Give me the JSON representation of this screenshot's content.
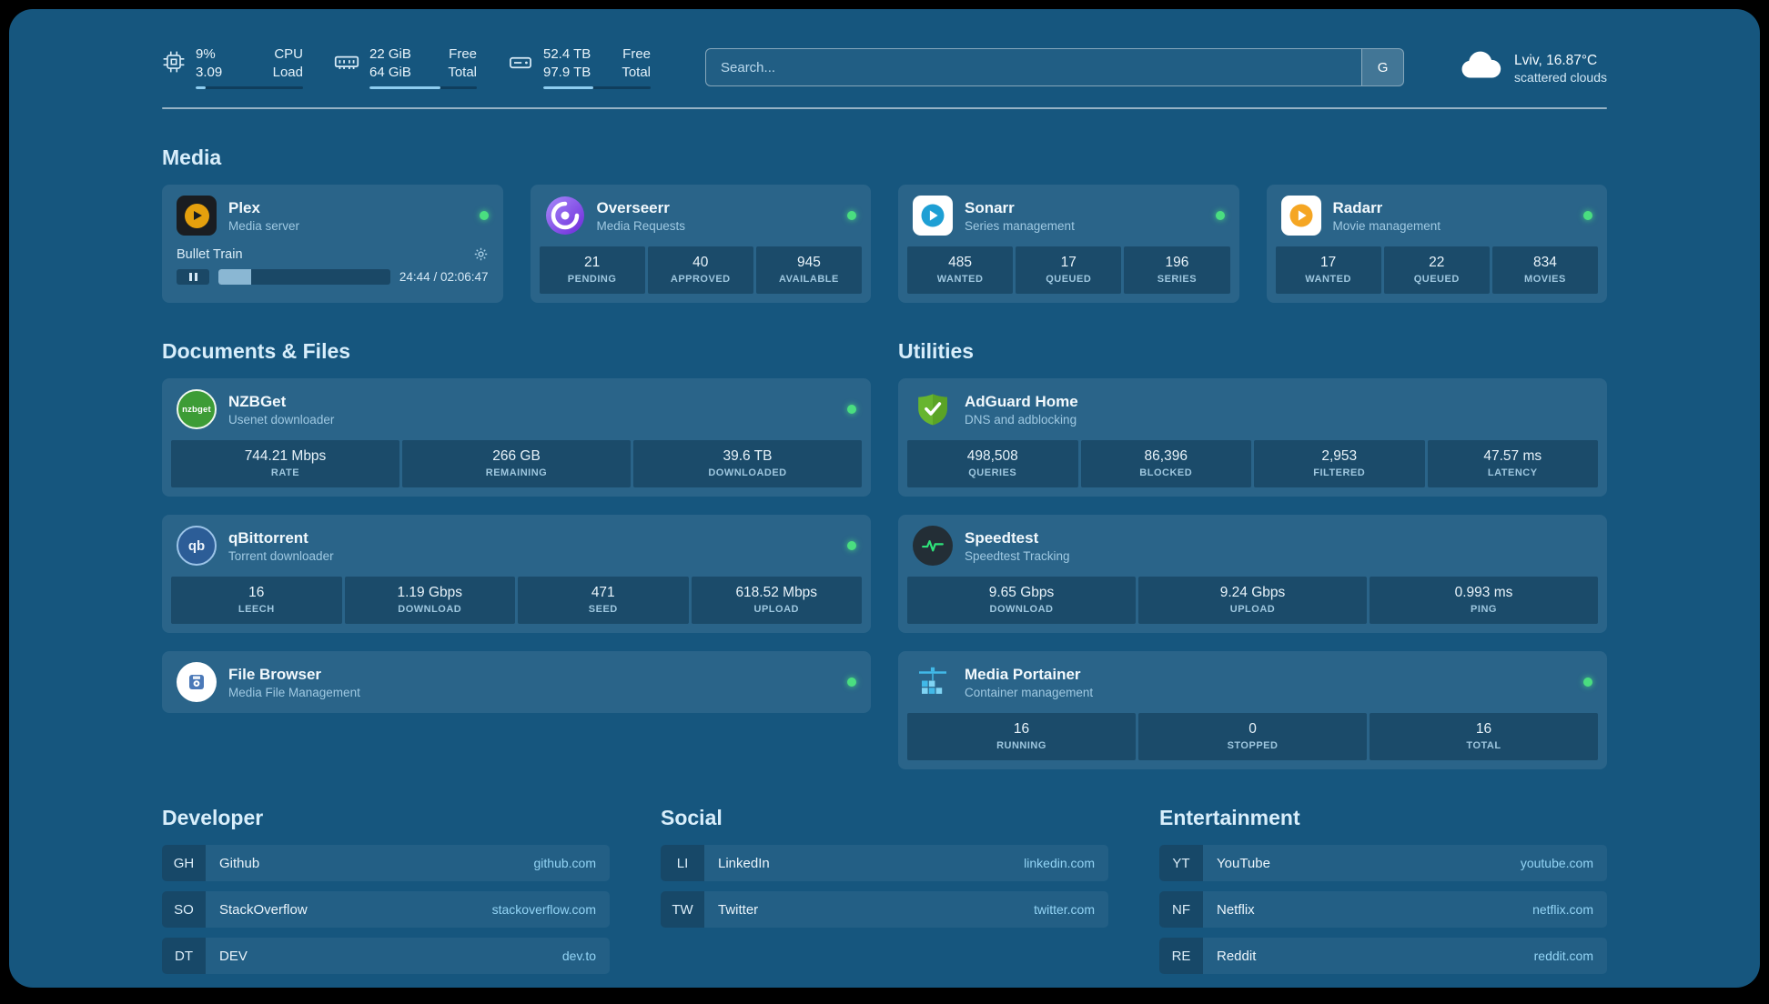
{
  "topbar": {
    "cpu": {
      "value1": "9%",
      "label1": "CPU",
      "value2": "3.09",
      "label2": "Load",
      "progress": 9
    },
    "memory": {
      "value1": "22 GiB",
      "label1": "Free",
      "value2": "64 GiB",
      "label2": "Total",
      "progress": 66
    },
    "disk": {
      "value1": "52.4 TB",
      "label1": "Free",
      "value2": "97.9 TB",
      "label2": "Total",
      "progress": 47
    },
    "search": {
      "placeholder": "Search...",
      "provider": "G"
    },
    "weather": {
      "location": "Lviv, 16.87°C",
      "condition": "scattered clouds"
    }
  },
  "sections": {
    "media": {
      "title": "Media"
    },
    "documents": {
      "title": "Documents & Files"
    },
    "utilities": {
      "title": "Utilities"
    },
    "developer": {
      "title": "Developer"
    },
    "social": {
      "title": "Social"
    },
    "entertainment": {
      "title": "Entertainment"
    }
  },
  "services": {
    "plex": {
      "name": "Plex",
      "subtitle": "Media server",
      "now_playing": "Bullet Train",
      "time": "24:44 / 02:06:47",
      "progress": 19
    },
    "overseerr": {
      "name": "Overseerr",
      "subtitle": "Media Requests",
      "stats": [
        {
          "value": "21",
          "label": "PENDING"
        },
        {
          "value": "40",
          "label": "APPROVED"
        },
        {
          "value": "945",
          "label": "AVAILABLE"
        }
      ]
    },
    "sonarr": {
      "name": "Sonarr",
      "subtitle": "Series management",
      "stats": [
        {
          "value": "485",
          "label": "WANTED"
        },
        {
          "value": "17",
          "label": "QUEUED"
        },
        {
          "value": "196",
          "label": "SERIES"
        }
      ]
    },
    "radarr": {
      "name": "Radarr",
      "subtitle": "Movie management",
      "stats": [
        {
          "value": "17",
          "label": "WANTED"
        },
        {
          "value": "22",
          "label": "QUEUED"
        },
        {
          "value": "834",
          "label": "MOVIES"
        }
      ]
    },
    "nzbget": {
      "name": "NZBGet",
      "subtitle": "Usenet downloader",
      "stats": [
        {
          "value": "744.21 Mbps",
          "label": "RATE"
        },
        {
          "value": "266 GB",
          "label": "REMAINING"
        },
        {
          "value": "39.6 TB",
          "label": "DOWNLOADED"
        }
      ]
    },
    "qbittorrent": {
      "name": "qBittorrent",
      "subtitle": "Torrent downloader",
      "stats": [
        {
          "value": "16",
          "label": "LEECH"
        },
        {
          "value": "1.19 Gbps",
          "label": "DOWNLOAD"
        },
        {
          "value": "471",
          "label": "SEED"
        },
        {
          "value": "618.52 Mbps",
          "label": "UPLOAD"
        }
      ]
    },
    "filebrowser": {
      "name": "File Browser",
      "subtitle": "Media File Management"
    },
    "adguard": {
      "name": "AdGuard Home",
      "subtitle": "DNS and adblocking",
      "stats": [
        {
          "value": "498,508",
          "label": "QUERIES"
        },
        {
          "value": "86,396",
          "label": "BLOCKED"
        },
        {
          "value": "2,953",
          "label": "FILTERED"
        },
        {
          "value": "47.57 ms",
          "label": "LATENCY"
        }
      ]
    },
    "speedtest": {
      "name": "Speedtest",
      "subtitle": "Speedtest Tracking",
      "stats": [
        {
          "value": "9.65 Gbps",
          "label": "DOWNLOAD"
        },
        {
          "value": "9.24 Gbps",
          "label": "UPLOAD"
        },
        {
          "value": "0.993 ms",
          "label": "PING"
        }
      ]
    },
    "portainer": {
      "name": "Media Portainer",
      "subtitle": "Container management",
      "stats": [
        {
          "value": "16",
          "label": "RUNNING"
        },
        {
          "value": "0",
          "label": "STOPPED"
        },
        {
          "value": "16",
          "label": "TOTAL"
        }
      ]
    }
  },
  "bookmarks": {
    "developer": [
      {
        "abbr": "GH",
        "name": "Github",
        "domain": "github.com"
      },
      {
        "abbr": "SO",
        "name": "StackOverflow",
        "domain": "stackoverflow.com"
      },
      {
        "abbr": "DT",
        "name": "DEV",
        "domain": "dev.to"
      }
    ],
    "social": [
      {
        "abbr": "LI",
        "name": "LinkedIn",
        "domain": "linkedin.com"
      },
      {
        "abbr": "TW",
        "name": "Twitter",
        "domain": "twitter.com"
      }
    ],
    "entertainment": [
      {
        "abbr": "YT",
        "name": "YouTube",
        "domain": "youtube.com"
      },
      {
        "abbr": "NF",
        "name": "Netflix",
        "domain": "netflix.com"
      },
      {
        "abbr": "RE",
        "name": "Reddit",
        "domain": "reddit.com"
      }
    ]
  },
  "icons": {
    "cpu": "cpu-chip",
    "memory": "ram-stick",
    "disk": "hard-drive",
    "weather": "cloud",
    "status": "green-dot",
    "player": "pause",
    "settings": "gear"
  },
  "colors": {
    "page_bg": "#16567e",
    "status_ok": "#4ade80",
    "accent": "#8ecdf0",
    "plex_amber": "#e5a00d"
  }
}
